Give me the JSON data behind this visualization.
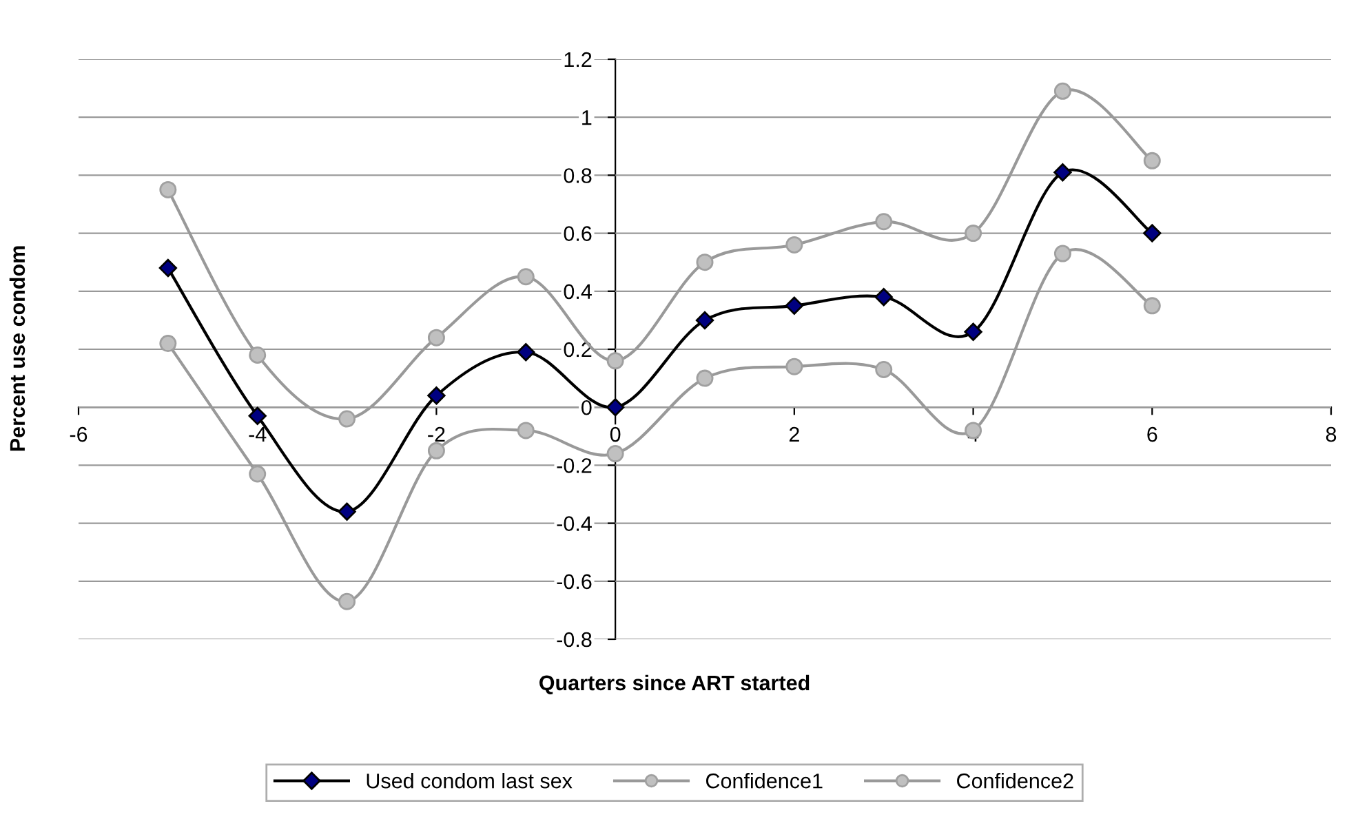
{
  "chart_data": {
    "type": "line",
    "xlabel": "Quarters since ART started",
    "ylabel": "Percent use condom",
    "x": [
      -5,
      -4,
      -3,
      -2,
      -1,
      0,
      1,
      2,
      3,
      4,
      5,
      6
    ],
    "series": [
      {
        "name": "Used condom last sex",
        "color": "#000000",
        "marker": "diamond",
        "values": [
          0.48,
          -0.03,
          -0.36,
          0.04,
          0.19,
          0.0,
          0.3,
          0.35,
          0.38,
          0.26,
          0.81,
          0.6
        ]
      },
      {
        "name": "Confidence1",
        "color": "#999999",
        "marker": "circle",
        "values": [
          0.75,
          0.18,
          -0.04,
          0.24,
          0.45,
          0.16,
          0.5,
          0.56,
          0.64,
          0.6,
          1.09,
          0.85
        ]
      },
      {
        "name": "Confidence2",
        "color": "#999999",
        "marker": "circle",
        "values": [
          0.22,
          -0.23,
          -0.67,
          -0.15,
          -0.08,
          -0.16,
          0.1,
          0.14,
          0.13,
          -0.08,
          0.53,
          0.35
        ]
      }
    ],
    "xlim": [
      -6,
      8
    ],
    "xticks": [
      -6,
      -4,
      -2,
      0,
      2,
      4,
      6,
      8
    ],
    "ylim": [
      -0.8,
      1.2
    ],
    "yticks": [
      -0.8,
      -0.6,
      -0.4,
      -0.2,
      0,
      0.2,
      0.4,
      0.6,
      0.8,
      1,
      1.2
    ],
    "grid": "y",
    "legend": "bottom",
    "line_style": "solid"
  }
}
